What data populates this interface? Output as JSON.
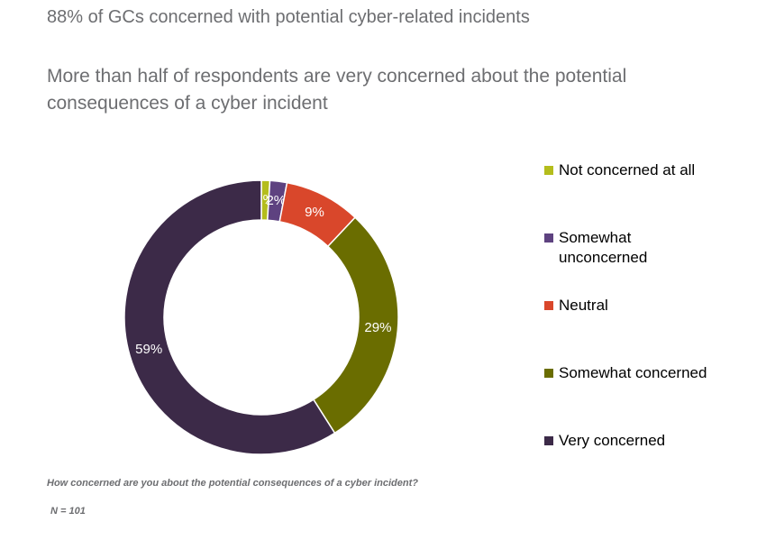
{
  "chart_data": {
    "type": "donut",
    "title": "88% of GCs concerned with potential cyber-related incidents",
    "subtitle": "More than half of respondents are very concerned about the potential consequences of a cyber incident",
    "categories": [
      "Not concerned at all",
      "Somewhat unconcerned",
      "Neutral",
      "Somewhat concerned",
      "Very concerned"
    ],
    "values": [
      1,
      2,
      9,
      29,
      59
    ],
    "value_labels": [
      "1%",
      "2%",
      "9%",
      "29%",
      "59%"
    ],
    "colors": [
      "#b4bd1c",
      "#5e4280",
      "#d9472b",
      "#6a6d00",
      "#3c2a48"
    ],
    "question": "How concerned are you about the potential consequences of a cyber incident?",
    "note": "N = 101",
    "legend": "right"
  }
}
